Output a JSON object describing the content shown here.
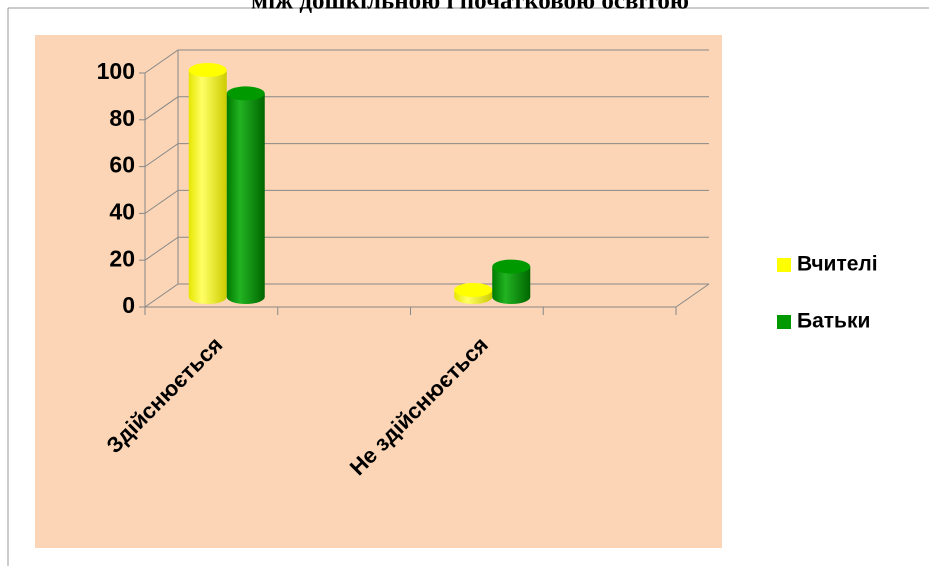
{
  "chart_data": {
    "type": "bar3d",
    "title": "між дошкільною і початковою освітою",
    "categories": [
      "Здійснюється",
      "Не здійснюється"
    ],
    "series": [
      {
        "name": "Вчителі",
        "color": "#ffff00",
        "values": [
          97,
          3
        ]
      },
      {
        "name": "Батьки",
        "color": "#009900",
        "values": [
          87,
          13
        ]
      }
    ],
    "ylim": [
      0,
      100
    ],
    "yticks": [
      0,
      20,
      40,
      60,
      80,
      100
    ],
    "grid": true,
    "legend": "right"
  }
}
